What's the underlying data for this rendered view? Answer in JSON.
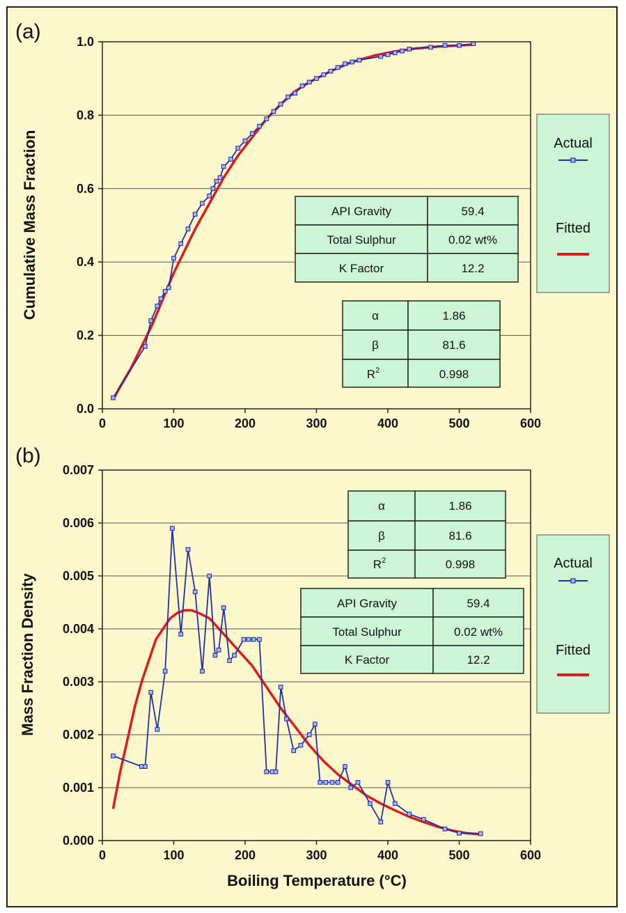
{
  "chart_data": [
    {
      "panel_label": "(a)",
      "type": "line",
      "xlabel": "",
      "ylabel": "Cumulative Mass Fraction",
      "xlim": [
        0,
        600
      ],
      "ylim": [
        0.0,
        1.0
      ],
      "xticks": [
        "0",
        "100",
        "200",
        "300",
        "400",
        "500",
        "600"
      ],
      "yticks": [
        "0.0",
        "0.2",
        "0.4",
        "0.6",
        "0.8",
        "1.0"
      ],
      "grid": "horizontal",
      "legend": [
        {
          "label": "Actual",
          "color": "#1f2fa8"
        },
        {
          "label": "Fitted",
          "color": "#e01a1a"
        }
      ],
      "series": [
        {
          "name": "Actual",
          "color": "#1f2fa8",
          "x": [
            15,
            60,
            68,
            77,
            82,
            88,
            93,
            100,
            110,
            120,
            130,
            140,
            150,
            155,
            160,
            165,
            170,
            180,
            190,
            200,
            210,
            220,
            230,
            240,
            250,
            260,
            270,
            280,
            290,
            300,
            310,
            320,
            330,
            340,
            350,
            360,
            390,
            400,
            410,
            420,
            430,
            460,
            480,
            500,
            520
          ],
          "y": [
            0.03,
            0.17,
            0.24,
            0.28,
            0.3,
            0.32,
            0.33,
            0.41,
            0.45,
            0.49,
            0.53,
            0.56,
            0.58,
            0.6,
            0.62,
            0.63,
            0.66,
            0.68,
            0.71,
            0.73,
            0.75,
            0.77,
            0.79,
            0.81,
            0.83,
            0.85,
            0.86,
            0.88,
            0.89,
            0.9,
            0.91,
            0.92,
            0.93,
            0.94,
            0.945,
            0.95,
            0.96,
            0.965,
            0.97,
            0.975,
            0.98,
            0.985,
            0.99,
            0.99,
            0.995
          ]
        },
        {
          "name": "Fitted",
          "color": "#e01a1a",
          "x": [
            15,
            25,
            40,
            55,
            70,
            85,
            100,
            115,
            130,
            150,
            170,
            190,
            210,
            230,
            250,
            270,
            290,
            320,
            350,
            380,
            410,
            440,
            470,
            500,
            520
          ],
          "y": [
            0.025,
            0.06,
            0.11,
            0.17,
            0.23,
            0.3,
            0.37,
            0.43,
            0.49,
            0.56,
            0.63,
            0.69,
            0.74,
            0.79,
            0.83,
            0.865,
            0.89,
            0.92,
            0.945,
            0.962,
            0.974,
            0.982,
            0.987,
            0.99,
            0.992
          ]
        }
      ],
      "tables": [
        {
          "rows": [
            [
              "API Gravity",
              "59.4"
            ],
            [
              "Total Sulphur",
              "0.02 wt%"
            ],
            [
              "K Factor",
              "12.2"
            ]
          ]
        },
        {
          "rows": [
            [
              "α",
              "1.86"
            ],
            [
              "β",
              "81.6"
            ],
            [
              "R",
              "0.998"
            ]
          ],
          "superscript": "2"
        }
      ]
    },
    {
      "panel_label": "(b)",
      "type": "line",
      "xlabel": "Boiling Temperature (°C)",
      "ylabel": "Mass Fraction Density",
      "xlim": [
        0,
        600
      ],
      "ylim": [
        0.0,
        0.007
      ],
      "xticks": [
        "0",
        "100",
        "200",
        "300",
        "400",
        "500",
        "600"
      ],
      "yticks": [
        "0.000",
        "0.001",
        "0.002",
        "0.003",
        "0.004",
        "0.005",
        "0.006",
        "0.007"
      ],
      "grid": "horizontal",
      "legend": [
        {
          "label": "Actual",
          "color": "#1f2fa8"
        },
        {
          "label": "Fitted",
          "color": "#e01a1a"
        }
      ],
      "series": [
        {
          "name": "Actual",
          "color": "#1f2fa8",
          "x": [
            15,
            55,
            60,
            68,
            77,
            88,
            98,
            110,
            120,
            130,
            140,
            150,
            158,
            163,
            170,
            178,
            185,
            198,
            205,
            212,
            220,
            230,
            238,
            243,
            250,
            258,
            268,
            278,
            290,
            298,
            305,
            313,
            322,
            330,
            340,
            348,
            358,
            375,
            390,
            400,
            410,
            430,
            450,
            480,
            500,
            530
          ],
          "y": [
            0.0016,
            0.0014,
            0.0014,
            0.0028,
            0.0021,
            0.0032,
            0.0059,
            0.0039,
            0.0055,
            0.0047,
            0.0032,
            0.005,
            0.0035,
            0.0036,
            0.0044,
            0.0034,
            0.0035,
            0.0038,
            0.0038,
            0.0038,
            0.0038,
            0.0013,
            0.0013,
            0.0013,
            0.0029,
            0.0023,
            0.0017,
            0.0018,
            0.002,
            0.0022,
            0.0011,
            0.0011,
            0.0011,
            0.0011,
            0.0014,
            0.001,
            0.0011,
            0.0007,
            0.00035,
            0.0011,
            0.0007,
            0.0005,
            0.0004,
            0.00022,
            0.00014,
            0.00013
          ]
        },
        {
          "name": "Fitted",
          "color": "#e01a1a",
          "x": [
            15,
            25,
            35,
            45,
            55,
            65,
            75,
            85,
            95,
            105,
            115,
            125,
            135,
            150,
            170,
            190,
            210,
            230,
            250,
            270,
            290,
            310,
            330,
            350,
            370,
            390,
            410,
            430,
            450,
            470,
            490,
            510,
            530
          ],
          "y": [
            0.0006,
            0.0013,
            0.0019,
            0.0025,
            0.003,
            0.0034,
            0.0038,
            0.004,
            0.0042,
            0.0043,
            0.00435,
            0.00435,
            0.0043,
            0.0042,
            0.0039,
            0.0036,
            0.0033,
            0.0029,
            0.0025,
            0.00215,
            0.0018,
            0.0015,
            0.00125,
            0.00105,
            0.00085,
            0.0007,
            0.00057,
            0.00045,
            0.00035,
            0.00026,
            0.00019,
            0.00014,
            0.00012
          ]
        }
      ],
      "tables": [
        {
          "rows": [
            [
              "α",
              "1.86"
            ],
            [
              "β",
              "81.6"
            ],
            [
              "R",
              "0.998"
            ]
          ],
          "superscript": "2"
        },
        {
          "rows": [
            [
              "API Gravity",
              "59.4"
            ],
            [
              "Total Sulphur",
              "0.02 wt%"
            ],
            [
              "K Factor",
              "12.2"
            ]
          ]
        }
      ]
    }
  ]
}
